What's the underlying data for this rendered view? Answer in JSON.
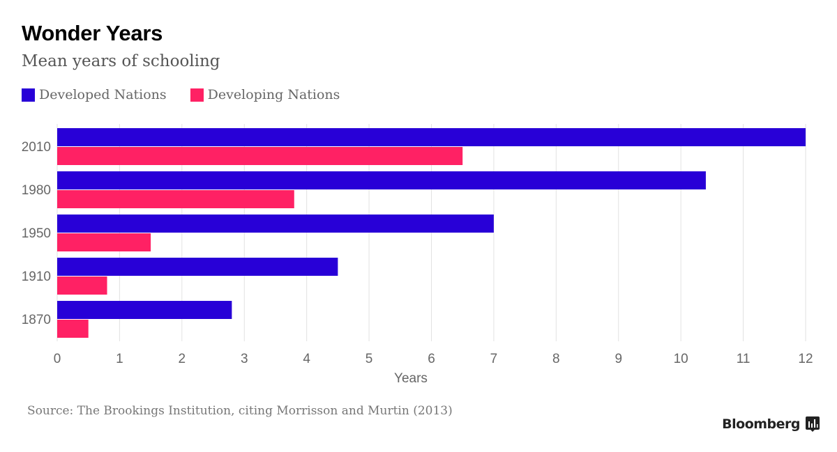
{
  "header": {
    "title": "Wonder Years",
    "subtitle": "Mean years of schooling"
  },
  "legend": [
    {
      "label": "Developed Nations",
      "color": "#2800d7"
    },
    {
      "label": "Developing Nations",
      "color": "#ff2164"
    }
  ],
  "footer": {
    "source": "Source: The Brookings Institution, citing Morrisson and Murtin (2013)",
    "brand": "Bloomberg"
  },
  "chart_data": {
    "type": "bar",
    "orientation": "horizontal",
    "title": "Wonder Years",
    "subtitle": "Mean years of schooling",
    "categories": [
      "2010",
      "1980",
      "1950",
      "1910",
      "1870"
    ],
    "series": [
      {
        "name": "Developed Nations",
        "color": "#2800d7",
        "values": [
          12.0,
          10.4,
          7.0,
          4.5,
          2.8
        ]
      },
      {
        "name": "Developing Nations",
        "color": "#ff2164",
        "values": [
          6.5,
          3.8,
          1.5,
          0.8,
          0.5
        ]
      }
    ],
    "xlabel": "Years",
    "ylabel": "",
    "xlim": [
      0,
      12
    ],
    "xticks": [
      0,
      1,
      2,
      3,
      4,
      5,
      6,
      7,
      8,
      9,
      10,
      11,
      12
    ],
    "grid": true,
    "legend_position": "top-left"
  }
}
